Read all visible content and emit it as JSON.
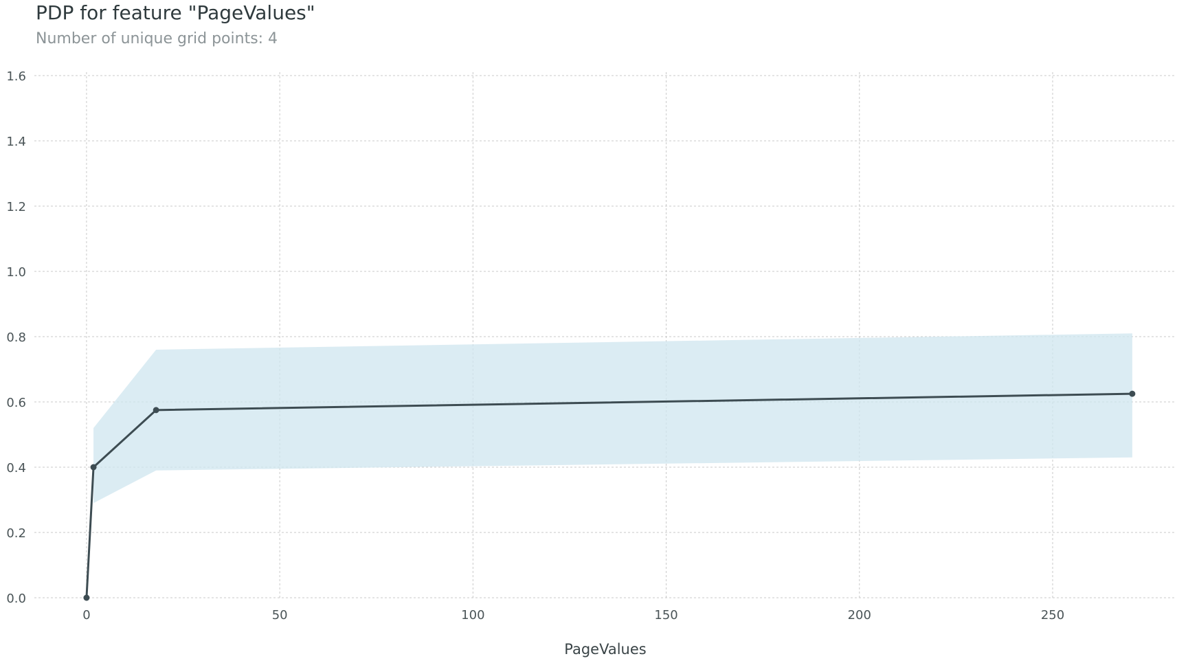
{
  "chart_data": {
    "type": "line",
    "title": "PDP for feature \"PageValues\"",
    "subtitle": "Number of unique grid points: 4",
    "xlabel": "PageValues",
    "ylabel": "",
    "xlim": [
      -13.5,
      282
    ],
    "ylim": [
      0,
      1.6
    ],
    "xticks": [
      0,
      50,
      100,
      150,
      200,
      250
    ],
    "yticks": [
      0.0,
      0.2,
      0.4,
      0.6,
      0.8,
      1.0,
      1.2,
      1.4,
      1.6
    ],
    "xtick_labels": [
      "0",
      "50",
      "100",
      "150",
      "200",
      "250"
    ],
    "ytick_labels": [
      "0.0",
      "0.2",
      "0.4",
      "0.6",
      "0.8",
      "1.0",
      "1.2",
      "1.4",
      "1.6"
    ],
    "grid": true,
    "series": [
      {
        "x": [
          0,
          1.8,
          18,
          270.6
        ],
        "y": [
          0.0,
          0.4,
          0.575,
          0.625
        ],
        "upper": [
          0.0,
          0.52,
          0.76,
          0.81
        ],
        "lower": [
          0.0,
          0.29,
          0.39,
          0.43
        ]
      }
    ],
    "colors": {
      "line": "#3d4c52",
      "band": "#cfe6ef",
      "grid": "#c9c9c9"
    }
  }
}
